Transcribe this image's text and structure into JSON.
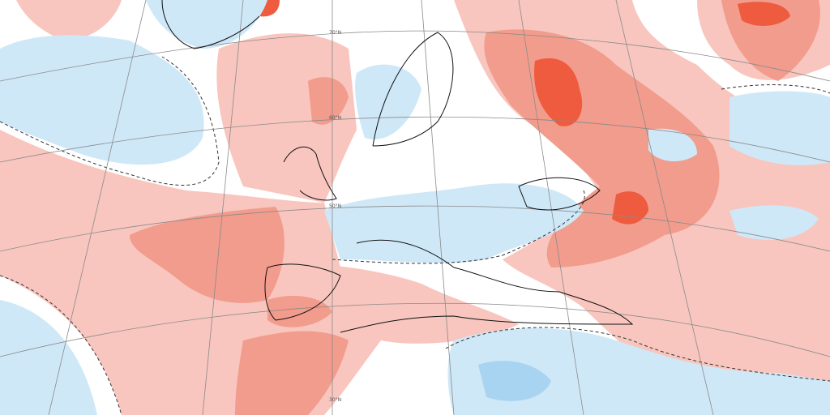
{
  "map": {
    "lat_labels": [
      "70°N",
      "60°N",
      "50°N",
      "30°N"
    ]
  }
}
